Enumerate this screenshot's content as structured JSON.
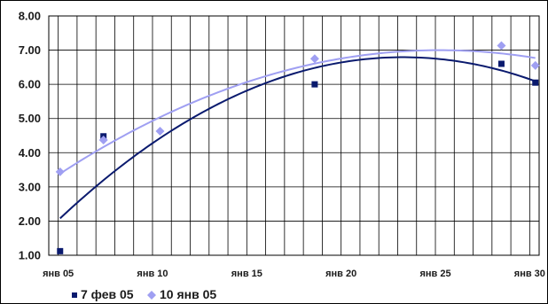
{
  "chart_data": {
    "type": "scatter",
    "title": "",
    "xlabel": "",
    "ylabel": "",
    "x_ticks": [
      "янв 05",
      "янв 10",
      "янв 15",
      "янв 20",
      "янв 25",
      "янв 30"
    ],
    "x_tick_days": [
      5,
      10,
      15,
      20,
      25,
      30
    ],
    "xlim": [
      4.5,
      30.5
    ],
    "y_ticks": [
      "1.00",
      "2.00",
      "3.00",
      "4.00",
      "5.00",
      "6.00",
      "7.00",
      "8.00"
    ],
    "ylim": [
      1,
      8
    ],
    "grid": true,
    "legend_position": "bottom-left",
    "series": [
      {
        "name": "7 фев 05",
        "color": "#0a1a6e",
        "marker": "square",
        "trendline": "polynomial",
        "x": [
          5.1,
          7.4,
          18.6,
          28.5,
          30.3
        ],
        "y": [
          1.12,
          4.48,
          6.0,
          6.6,
          6.05
        ]
      },
      {
        "name": "10 янв 05",
        "color": "#9f9ff2",
        "marker": "diamond",
        "trendline": "polynomial",
        "x": [
          5.1,
          7.4,
          10.4,
          18.6,
          28.5,
          30.3
        ],
        "y": [
          3.44,
          4.37,
          4.63,
          6.75,
          7.13,
          6.55
        ]
      }
    ]
  }
}
